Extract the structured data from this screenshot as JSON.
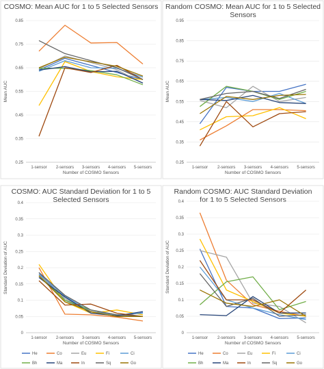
{
  "chart_data": [
    {
      "type": "line",
      "title": "COSMO: Mean AUC for 1 to 5 Selected Sensors",
      "xlabel": "Number of COSMO Sensors",
      "ylabel": "Mean AUC",
      "categories": [
        "1-sensor",
        "2-sensors",
        "3-sensors",
        "4-sensors",
        "5-sensors"
      ],
      "ylim": [
        0.25,
        0.85
      ],
      "yticks": [
        "0.25",
        "0.35",
        "0.45",
        "0.55",
        "0.65",
        "0.75",
        "0.85"
      ],
      "grid": true,
      "series": [
        {
          "name": "He",
          "color": "#4472c4",
          "values": [
            0.64,
            0.69,
            0.66,
            0.63,
            0.6
          ]
        },
        {
          "name": "Co",
          "color": "#ed7d31",
          "values": [
            0.72,
            0.83,
            0.755,
            0.757,
            0.666
          ]
        },
        {
          "name": "Eu",
          "color": "#a5a5a5",
          "values": [
            0.645,
            0.7,
            0.672,
            0.642,
            0.585
          ]
        },
        {
          "name": "Fi",
          "color": "#ffc000",
          "values": [
            0.49,
            0.676,
            0.634,
            0.612,
            0.6
          ]
        },
        {
          "name": "Ci",
          "color": "#5b9bd5",
          "values": [
            0.635,
            0.68,
            0.65,
            0.648,
            0.61
          ]
        },
        {
          "name": "Bh",
          "color": "#70ad47",
          "values": [
            0.648,
            0.648,
            0.638,
            0.62,
            0.578
          ]
        },
        {
          "name": "Ma",
          "color": "#264478",
          "values": [
            0.64,
            0.655,
            0.633,
            0.635,
            0.585
          ]
        },
        {
          "name": "In",
          "color": "#9e480e",
          "values": [
            0.36,
            0.65,
            0.63,
            0.66,
            0.6
          ]
        },
        {
          "name": "Sq",
          "color": "#636363",
          "values": [
            0.765,
            0.71,
            0.68,
            0.65,
            0.6
          ]
        },
        {
          "name": "Go",
          "color": "#997300",
          "values": [
            0.65,
            0.695,
            0.675,
            0.656,
            0.615
          ]
        }
      ]
    },
    {
      "type": "line",
      "title": "Random COSMO: Mean AUC for 1 to 5 Selected Sensors",
      "xlabel": "Number of COSMO Sensors",
      "ylabel": "Mean AUC",
      "categories": [
        "1-sensor",
        "2-sensors",
        "3-sensors",
        "4-sensors",
        "5-sensors"
      ],
      "ylim": [
        0.25,
        0.95
      ],
      "yticks": [
        "0.25",
        "0.35",
        "0.45",
        "0.55",
        "0.65",
        "0.75",
        "0.85",
        "0.95"
      ],
      "grid": true,
      "series": [
        {
          "name": "He",
          "color": "#4472c4",
          "values": [
            0.44,
            0.62,
            0.6,
            0.6,
            0.635
          ]
        },
        {
          "name": "Co",
          "color": "#ed7d31",
          "values": [
            0.36,
            0.43,
            0.51,
            0.51,
            0.505
          ]
        },
        {
          "name": "Eu",
          "color": "#a5a5a5",
          "values": [
            0.555,
            0.52,
            0.625,
            0.55,
            0.57
          ]
        },
        {
          "name": "Fi",
          "color": "#ffc000",
          "values": [
            0.41,
            0.475,
            0.48,
            0.52,
            0.465
          ]
        },
        {
          "name": "Ci",
          "color": "#5b9bd5",
          "values": [
            0.56,
            0.57,
            0.55,
            0.59,
            0.54
          ]
        },
        {
          "name": "Bh",
          "color": "#70ad47",
          "values": [
            0.525,
            0.625,
            0.6,
            0.56,
            0.6
          ]
        },
        {
          "name": "Ma",
          "color": "#264478",
          "values": [
            0.56,
            0.555,
            0.58,
            0.545,
            0.54
          ]
        },
        {
          "name": "In",
          "color": "#9e480e",
          "values": [
            0.33,
            0.55,
            0.425,
            0.49,
            0.5
          ]
        },
        {
          "name": "Sq",
          "color": "#636363",
          "values": [
            0.56,
            0.59,
            0.6,
            0.565,
            0.61
          ]
        },
        {
          "name": "Go",
          "color": "#997300",
          "values": [
            0.49,
            0.575,
            0.56,
            0.58,
            0.585
          ]
        }
      ]
    },
    {
      "type": "line",
      "title": "COSMO: AUC Standard Deviation for 1 to 5 Selected Sensors",
      "xlabel": "Number of COSMO Sensors",
      "ylabel": "Standard Deviation of AUC",
      "categories": [
        "1-sensor",
        "2-sensors",
        "3-sensors",
        "4-sensors",
        "5-sensors"
      ],
      "ylim": [
        0,
        0.4
      ],
      "yticks": [
        "0",
        "0.05",
        "0.1",
        "0.15",
        "0.2",
        "0.25",
        "0.3",
        "0.35",
        "0.4"
      ],
      "grid": true,
      "series": [
        {
          "name": "He",
          "color": "#4472c4",
          "values": [
            0.185,
            0.1,
            0.065,
            0.05,
            0.062
          ]
        },
        {
          "name": "Co",
          "color": "#ed7d31",
          "values": [
            0.2,
            0.057,
            0.055,
            0.048,
            0.036
          ]
        },
        {
          "name": "Eu",
          "color": "#a5a5a5",
          "values": [
            0.178,
            0.105,
            0.062,
            0.055,
            0.06
          ]
        },
        {
          "name": "Fi",
          "color": "#ffc000",
          "values": [
            0.21,
            0.095,
            0.06,
            0.07,
            0.055
          ]
        },
        {
          "name": "Ci",
          "color": "#5b9bd5",
          "values": [
            0.18,
            0.112,
            0.065,
            0.055,
            0.06
          ]
        },
        {
          "name": "Bh",
          "color": "#70ad47",
          "values": [
            0.175,
            0.1,
            0.07,
            0.055,
            0.05
          ]
        },
        {
          "name": "Ma",
          "color": "#264478",
          "values": [
            0.17,
            0.11,
            0.06,
            0.052,
            0.065
          ]
        },
        {
          "name": "In",
          "color": "#9e480e",
          "values": [
            0.16,
            0.085,
            0.088,
            0.06,
            0.05
          ]
        },
        {
          "name": "Sq",
          "color": "#636363",
          "values": [
            0.185,
            0.115,
            0.07,
            0.055,
            0.05
          ]
        },
        {
          "name": "Go",
          "color": "#997300",
          "values": [
            0.175,
            0.095,
            0.065,
            0.05,
            0.05
          ]
        }
      ]
    },
    {
      "type": "line",
      "title": "Random COSMO: AUC Standard Deviation for 1 to 5 Selected Sensors",
      "xlabel": "Number of COSMO Sensors",
      "ylabel": "Standard Deviation of AUC",
      "categories": [
        "1-sensor",
        "2-sensors",
        "3-sensors",
        "4-sensors",
        "5-sensors"
      ],
      "ylim": [
        0,
        0.4
      ],
      "yticks": [
        "0",
        "0.05",
        "0.1",
        "0.15",
        "0.2",
        "0.25",
        "0.3",
        "0.35",
        "0.4"
      ],
      "grid": true,
      "series": [
        {
          "name": "He",
          "color": "#4472c4",
          "values": [
            0.255,
            0.08,
            0.075,
            0.043,
            0.045
          ]
        },
        {
          "name": "Co",
          "color": "#ed7d31",
          "values": [
            0.365,
            0.16,
            0.085,
            0.065,
            0.05
          ]
        },
        {
          "name": "Eu",
          "color": "#a5a5a5",
          "values": [
            0.25,
            0.23,
            0.09,
            0.08,
            0.03
          ]
        },
        {
          "name": "Fi",
          "color": "#ffc000",
          "values": [
            0.285,
            0.13,
            0.095,
            0.06,
            0.05
          ]
        },
        {
          "name": "Ci",
          "color": "#5b9bd5",
          "values": [
            0.2,
            0.1,
            0.075,
            0.055,
            0.04
          ]
        },
        {
          "name": "Bh",
          "color": "#70ad47",
          "values": [
            0.085,
            0.155,
            0.17,
            0.07,
            0.095
          ]
        },
        {
          "name": "Ma",
          "color": "#264478",
          "values": [
            0.055,
            0.052,
            0.11,
            0.06,
            0.06
          ]
        },
        {
          "name": "In",
          "color": "#9e480e",
          "values": [
            0.22,
            0.1,
            0.1,
            0.06,
            0.13
          ]
        },
        {
          "name": "Sq",
          "color": "#636363",
          "values": [
            0.18,
            0.08,
            0.105,
            0.05,
            0.055
          ]
        },
        {
          "name": "Go",
          "color": "#997300",
          "values": [
            0.13,
            0.09,
            0.08,
            0.1,
            0.05
          ]
        }
      ]
    }
  ]
}
